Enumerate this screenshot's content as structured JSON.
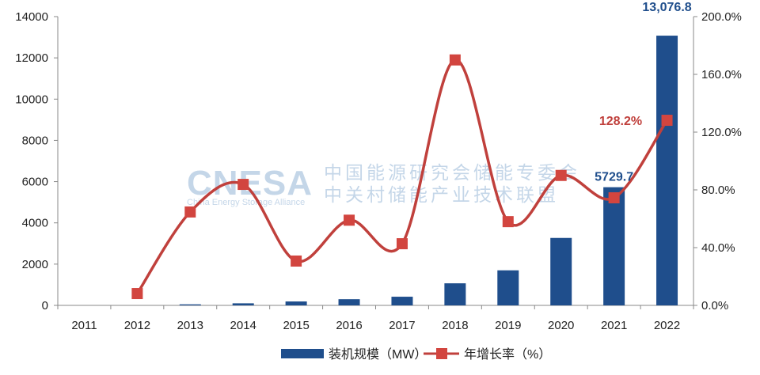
{
  "chart_data": {
    "type": "bar+line",
    "categories": [
      "2011",
      "2012",
      "2013",
      "2014",
      "2015",
      "2016",
      "2017",
      "2018",
      "2019",
      "2020",
      "2021",
      "2022"
    ],
    "series": [
      {
        "name": "装机规模（MW）",
        "type": "bar",
        "axis": "left",
        "color": "#1f4e8c",
        "values": [
          0,
          0,
          50,
          100,
          190,
          300,
          420,
          1070,
          1700,
          3270,
          5729.7,
          13076.8
        ]
      },
      {
        "name": "年增长率（%）",
        "type": "line",
        "axis": "right",
        "color": "#c0403c",
        "values": [
          null,
          8.2,
          64.7,
          83.8,
          30.7,
          59.0,
          42.7,
          170.0,
          58.0,
          90.0,
          74.5,
          128.2
        ]
      }
    ],
    "data_labels": [
      {
        "series": 0,
        "category": "2021",
        "text": "5729.7"
      },
      {
        "series": 0,
        "category": "2022",
        "text": "13,076.8"
      },
      {
        "series": 1,
        "category": "2022",
        "text": "128.2%"
      }
    ],
    "left_axis": {
      "ylim": [
        0,
        14000
      ],
      "ticks": [
        "0",
        "2000",
        "4000",
        "6000",
        "8000",
        "10000",
        "12000",
        "14000"
      ]
    },
    "right_axis": {
      "ylim": [
        0,
        200
      ],
      "ticks": [
        "0.0%",
        "40.0%",
        "80.0%",
        "120.0%",
        "160.0%",
        "200.0%"
      ]
    },
    "grid": false,
    "legend_position": "bottom"
  },
  "watermark": {
    "logo": "CNESA",
    "line1": "中国能源研究会储能专委会",
    "line2": "中关村储能产业技术联盟",
    "sub": "China Energy Storage Alliance"
  }
}
